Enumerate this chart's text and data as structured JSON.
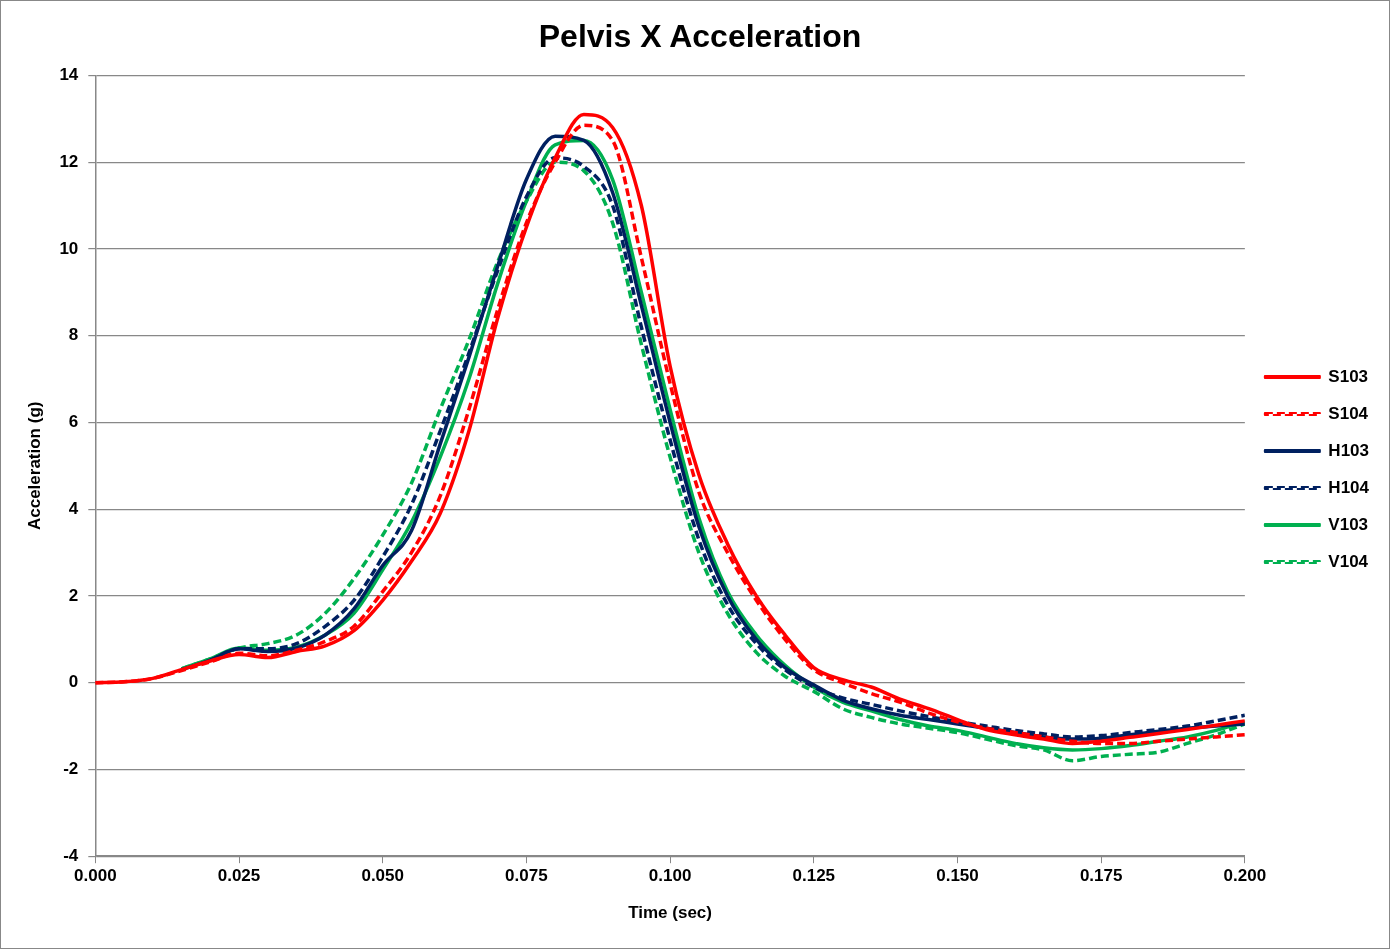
{
  "chart_data": {
    "type": "line",
    "title": "Pelvis X Acceleration",
    "xlabel": "Time (sec)",
    "ylabel": "Acceleration (g)",
    "x": [
      0,
      0.005,
      0.01,
      0.015,
      0.02,
      0.025,
      0.03,
      0.035,
      0.04,
      0.045,
      0.05,
      0.055,
      0.06,
      0.065,
      0.07,
      0.075,
      0.08,
      0.085,
      0.09,
      0.095,
      0.1,
      0.105,
      0.11,
      0.115,
      0.12,
      0.125,
      0.13,
      0.135,
      0.14,
      0.145,
      0.15,
      0.155,
      0.16,
      0.165,
      0.17,
      0.175,
      0.18,
      0.185,
      0.19,
      0.195,
      0.2
    ],
    "series": [
      {
        "name": "S103",
        "color": "#ff0000",
        "line_style": "solid",
        "values": [
          0,
          0.02,
          0.1,
          0.3,
          0.5,
          0.65,
          0.58,
          0.72,
          0.85,
          1.2,
          1.9,
          2.8,
          3.9,
          5.8,
          8.4,
          10.5,
          12.1,
          13.1,
          12.8,
          11.0,
          7.3,
          4.8,
          3.2,
          2.0,
          1.1,
          0.35,
          0.07,
          -0.1,
          -0.38,
          -0.6,
          -0.85,
          -1.08,
          -1.2,
          -1.3,
          -1.4,
          -1.35,
          -1.26,
          -1.17,
          -1.08,
          -0.98,
          -0.88
        ]
      },
      {
        "name": "S104",
        "color": "#ff0000",
        "line_style": "dashed",
        "values": [
          0,
          0.02,
          0.1,
          0.28,
          0.48,
          0.68,
          0.62,
          0.75,
          0.95,
          1.3,
          2.1,
          3.0,
          4.3,
          6.3,
          8.6,
          10.6,
          12.0,
          12.85,
          12.5,
          9.8,
          6.9,
          4.4,
          3.0,
          1.9,
          1.0,
          0.3,
          0.0,
          -0.25,
          -0.45,
          -0.7,
          -0.9,
          -1.05,
          -1.15,
          -1.25,
          -1.35,
          -1.4,
          -1.4,
          -1.35,
          -1.3,
          -1.25,
          -1.2
        ]
      },
      {
        "name": "H103",
        "color": "#002060",
        "line_style": "solid",
        "values": [
          null,
          null,
          null,
          0.3,
          0.52,
          0.78,
          0.72,
          0.8,
          1.1,
          1.7,
          2.7,
          3.5,
          5.5,
          7.5,
          9.6,
          11.6,
          12.6,
          12.5,
          11.3,
          8.7,
          6.0,
          3.6,
          2.0,
          1.0,
          0.35,
          -0.05,
          -0.4,
          -0.6,
          -0.75,
          -0.85,
          -0.95,
          -1.05,
          -1.15,
          -1.25,
          -1.3,
          -1.28,
          -1.2,
          -1.12,
          -1.05,
          -1.0,
          -0.95
        ]
      },
      {
        "name": "H104",
        "color": "#002060",
        "line_style": "dashed",
        "values": [
          null,
          null,
          null,
          null,
          0.52,
          0.78,
          0.78,
          0.9,
          1.3,
          1.9,
          2.9,
          4.1,
          5.8,
          7.6,
          9.5,
          11.2,
          12.1,
          11.9,
          11.0,
          8.2,
          5.6,
          3.3,
          1.8,
          0.9,
          0.3,
          -0.1,
          -0.35,
          -0.5,
          -0.65,
          -0.78,
          -0.9,
          -1.0,
          -1.1,
          -1.18,
          -1.25,
          -1.22,
          -1.15,
          -1.08,
          -1.0,
          -0.88,
          -0.75
        ]
      },
      {
        "name": "V103",
        "color": "#00b050",
        "line_style": "solid",
        "values": [
          null,
          null,
          null,
          0.32,
          0.55,
          0.8,
          0.75,
          0.82,
          1.1,
          1.6,
          2.6,
          3.7,
          5.2,
          7.0,
          9.2,
          11.1,
          12.4,
          12.5,
          11.6,
          9.0,
          6.3,
          3.8,
          2.1,
          1.1,
          0.4,
          -0.1,
          -0.45,
          -0.65,
          -0.85,
          -1.0,
          -1.1,
          -1.25,
          -1.4,
          -1.5,
          -1.55,
          -1.52,
          -1.45,
          -1.35,
          -1.25,
          -1.1,
          -0.9
        ]
      },
      {
        "name": "V104",
        "color": "#00b050",
        "line_style": "dashed",
        "values": [
          null,
          null,
          null,
          0.32,
          0.55,
          0.8,
          0.9,
          1.1,
          1.6,
          2.4,
          3.4,
          4.6,
          6.3,
          7.9,
          9.7,
          11.1,
          12.0,
          11.8,
          10.6,
          7.8,
          5.2,
          3.0,
          1.6,
          0.7,
          0.15,
          -0.2,
          -0.6,
          -0.8,
          -0.95,
          -1.05,
          -1.15,
          -1.3,
          -1.45,
          -1.55,
          -1.8,
          -1.7,
          -1.65,
          -1.6,
          -1.4,
          -1.2,
          -0.95
        ]
      }
    ],
    "xlim": [
      0,
      0.2
    ],
    "xticks": [
      {
        "value": 0,
        "label": "0.000"
      },
      {
        "value": 0.025,
        "label": "0.025"
      },
      {
        "value": 0.05,
        "label": "0.050"
      },
      {
        "value": 0.075,
        "label": "0.075"
      },
      {
        "value": 0.1,
        "label": "0.100"
      },
      {
        "value": 0.125,
        "label": "0.125"
      },
      {
        "value": 0.15,
        "label": "0.150"
      },
      {
        "value": 0.175,
        "label": "0.175"
      },
      {
        "value": 0.2,
        "label": "0.200"
      }
    ],
    "ylim": [
      -4,
      14
    ],
    "yticks": [
      -4,
      -2,
      0,
      2,
      4,
      6,
      8,
      10,
      12,
      14
    ],
    "grid": "y",
    "legend": "right",
    "marker": "none"
  }
}
